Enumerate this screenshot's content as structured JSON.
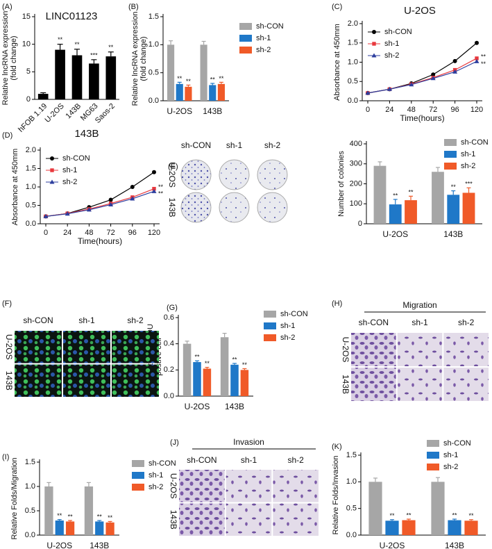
{
  "chart_data": [
    {
      "type": "bar",
      "panel": "(A)",
      "title": "LINC01123",
      "ylabel": [
        "Relative lncRNA expression",
        "(fold change)"
      ],
      "categories": [
        "hFOB 1.19",
        "U-2OS",
        "143B",
        "MG63",
        "Saos-2"
      ],
      "values": [
        1,
        9,
        8,
        6.5,
        7.8
      ],
      "errors": [
        0.2,
        1,
        1.1,
        0.7,
        0.8
      ],
      "annotations": [
        null,
        "**",
        "**",
        "***",
        "**"
      ],
      "color": "#000000",
      "ylim": [
        0,
        15
      ],
      "yticks": [
        0,
        5,
        10,
        15
      ]
    },
    {
      "type": "bar",
      "panel": "(B)",
      "ylabel": [
        "Relative lncRNA expression",
        "(fold change)"
      ],
      "categories": [
        "U-2OS",
        "143B"
      ],
      "series": [
        {
          "name": "sh-CON",
          "color": "#a6a6a6",
          "values": [
            1,
            1
          ],
          "errors": [
            0.07,
            0.06
          ],
          "annotations": [
            null,
            null
          ]
        },
        {
          "name": "sh-1",
          "color": "#1f78c8",
          "values": [
            0.3,
            0.28
          ],
          "errors": [
            0.03,
            0.03
          ],
          "annotations": [
            "**",
            "**"
          ]
        },
        {
          "name": "sh-2",
          "color": "#f05a28",
          "values": [
            0.25,
            0.3
          ],
          "errors": [
            0.03,
            0.03
          ],
          "annotations": [
            "**",
            "**"
          ]
        }
      ],
      "ylim": [
        0,
        1.5
      ],
      "yticks": [
        {
          "value": 0,
          "label": "0.0"
        },
        0.5,
        {
          "value": 1,
          "label": "1.0"
        },
        1.5
      ],
      "legend": "right"
    },
    {
      "type": "line",
      "panel": "(C)",
      "title": "U-2OS",
      "xlabel": "Time(hours)",
      "ylabel": [
        "Absorbance at 450mm"
      ],
      "x": [
        0,
        24,
        48,
        72,
        96,
        120
      ],
      "series": [
        {
          "name": "sh-CON",
          "color": "#000000",
          "marker": "circle",
          "values": [
            0.2,
            0.3,
            0.45,
            0.68,
            1.03,
            1.5
          ],
          "annotations": [
            null,
            null,
            null,
            null,
            null,
            null
          ]
        },
        {
          "name": "sh-1",
          "color": "#e8383d",
          "marker": "square",
          "values": [
            0.2,
            0.3,
            0.43,
            0.6,
            0.8,
            1.1
          ],
          "annotations": [
            null,
            null,
            null,
            null,
            null,
            "**"
          ]
        },
        {
          "name": "sh-2",
          "color": "#2c3e9e",
          "marker": "triangle",
          "values": [
            0.2,
            0.3,
            0.42,
            0.58,
            0.75,
            1.02
          ],
          "annotations": [
            null,
            null,
            null,
            null,
            null,
            "**"
          ]
        }
      ],
      "xlim": [
        0,
        120
      ],
      "xticks": [
        0,
        24,
        48,
        72,
        96,
        120
      ],
      "ylim": [
        0,
        2
      ],
      "yticks": [
        {
          "value": 0,
          "label": "0.0"
        },
        0.5,
        {
          "value": 1,
          "label": "1.0"
        },
        1.5,
        {
          "value": 2,
          "label": "2.0"
        }
      ],
      "legend": "upper left"
    },
    {
      "type": "line",
      "panel": "(D)",
      "title": "143B",
      "xlabel": "Time(hours)",
      "ylabel": [
        "Absorbance at 450mm"
      ],
      "x": [
        0,
        24,
        48,
        72,
        96,
        120
      ],
      "series": [
        {
          "name": "sh-CON",
          "color": "#000000",
          "marker": "circle",
          "values": [
            0.2,
            0.28,
            0.45,
            0.65,
            1,
            1.4
          ],
          "annotations": [
            null,
            null,
            null,
            null,
            null,
            null
          ]
        },
        {
          "name": "sh-1",
          "color": "#e8383d",
          "marker": "square",
          "values": [
            0.2,
            0.28,
            0.4,
            0.55,
            0.72,
            0.95
          ],
          "annotations": [
            null,
            null,
            null,
            null,
            null,
            "**"
          ]
        },
        {
          "name": "sh-2",
          "color": "#2c3e9e",
          "marker": "triangle",
          "values": [
            0.2,
            0.27,
            0.38,
            0.52,
            0.68,
            0.88
          ],
          "annotations": [
            null,
            null,
            null,
            null,
            null,
            "**"
          ]
        }
      ],
      "xlim": [
        0,
        120
      ],
      "xticks": [
        0,
        24,
        48,
        72,
        96,
        120
      ],
      "ylim": [
        0,
        2
      ],
      "yticks": [
        {
          "value": 0,
          "label": "0.0"
        },
        0.5,
        {
          "value": 1,
          "label": "1.0"
        },
        1.5,
        {
          "value": 2,
          "label": "2.0"
        }
      ],
      "legend": "upper left"
    },
    {
      "type": "bar",
      "ylabel": [
        "Number of colonies"
      ],
      "categories": [
        "U-2OS",
        "143B"
      ],
      "series": [
        {
          "name": "sh-CON",
          "color": "#a6a6a6",
          "values": [
            290,
            260
          ],
          "errors": [
            20,
            22
          ],
          "annotations": [
            null,
            null
          ]
        },
        {
          "name": "sh-1",
          "color": "#1f78c8",
          "values": [
            97,
            145
          ],
          "errors": [
            25,
            20
          ],
          "annotations": [
            "**",
            "**"
          ]
        },
        {
          "name": "sh-2",
          "color": "#f05a28",
          "values": [
            118,
            155
          ],
          "errors": [
            20,
            25
          ],
          "annotations": [
            "**",
            "***"
          ]
        }
      ],
      "ylim": [
        0,
        400
      ],
      "yticks": [
        0,
        100,
        200,
        300,
        400
      ],
      "legend": "upper right"
    },
    {
      "type": "bar",
      "panel": "(G)",
      "ylabel": [
        "Percentage of EDU",
        "postive cell"
      ],
      "categories": [
        "U-2OS",
        "143B"
      ],
      "series": [
        {
          "name": "sh-CON",
          "color": "#a6a6a6",
          "values": [
            0.4,
            0.45
          ],
          "errors": [
            0.02,
            0.03
          ],
          "annotations": [
            null,
            null
          ]
        },
        {
          "name": "sh-1",
          "color": "#1f78c8",
          "values": [
            0.26,
            0.24
          ],
          "errors": [
            0.01,
            0.01
          ],
          "annotations": [
            "**",
            "**"
          ]
        },
        {
          "name": "sh-2",
          "color": "#f05a28",
          "values": [
            0.21,
            0.2
          ],
          "errors": [
            0.01,
            0.01
          ],
          "annotations": [
            "**",
            "**"
          ]
        }
      ],
      "ylim": [
        0,
        0.6
      ],
      "yticks": [
        {
          "value": 0,
          "label": "0.0"
        },
        0.2,
        0.4,
        0.6
      ],
      "legend": "right"
    },
    {
      "type": "bar",
      "panel": "(I)",
      "ylabel": [
        "Relative Folds/Migration"
      ],
      "categories": [
        "U-2OS",
        "143B"
      ],
      "series": [
        {
          "name": "sh-CON",
          "color": "#a6a6a6",
          "values": [
            1,
            1
          ],
          "errors": [
            0.08,
            0.08
          ],
          "annotations": [
            null,
            null
          ]
        },
        {
          "name": "sh-1",
          "color": "#1f78c8",
          "values": [
            0.3,
            0.28
          ],
          "errors": [
            0.02,
            0.02
          ],
          "annotations": [
            "**",
            "**"
          ]
        },
        {
          "name": "sh-2",
          "color": "#f05a28",
          "values": [
            0.28,
            0.26
          ],
          "errors": [
            0.02,
            0.02
          ],
          "annotations": [
            "**",
            "**"
          ]
        }
      ],
      "ylim": [
        0,
        1.5
      ],
      "yticks": [
        {
          "value": 0,
          "label": "0.0"
        },
        0.5,
        {
          "value": 1,
          "label": "1.0"
        },
        1.5
      ],
      "legend": "right"
    },
    {
      "type": "bar",
      "panel": "(K)",
      "ylabel": [
        "Relative Folds/Invasion"
      ],
      "categories": [
        "U-2OS",
        "143B"
      ],
      "series": [
        {
          "name": "sh-CON",
          "color": "#a6a6a6",
          "values": [
            1,
            1
          ],
          "errors": [
            0.07,
            0.08
          ],
          "annotations": [
            null,
            null
          ]
        },
        {
          "name": "sh-1",
          "color": "#1f78c8",
          "values": [
            0.27,
            0.28
          ],
          "errors": [
            0.02,
            0.02
          ],
          "annotations": [
            "**",
            "**"
          ]
        },
        {
          "name": "sh-2",
          "color": "#f05a28",
          "values": [
            0.28,
            0.27
          ],
          "errors": [
            0.02,
            0.02
          ],
          "annotations": [
            "**",
            "**"
          ]
        }
      ],
      "ylim": [
        0,
        1.5
      ],
      "yticks": [
        {
          "value": 0,
          "label": "0.0"
        },
        0.5,
        {
          "value": 1,
          "label": "1.0"
        },
        1.5
      ],
      "legend": "upper right"
    }
  ],
  "image_panels": [
    {
      "panel": "(E)",
      "columns": [
        "sh-CON",
        "sh-1",
        "sh-2"
      ],
      "rows": [
        "U-2OS",
        "143B"
      ]
    },
    {
      "panel": "(F)",
      "columns": [
        "sh-CON",
        "sh-1",
        "sh-2"
      ],
      "rows": [
        "U-2OS",
        "143B"
      ]
    },
    {
      "panel": "(H)",
      "title": "Migration",
      "columns": [
        "sh-CON",
        "sh-1",
        "sh-2"
      ],
      "rows": [
        "U-2OS",
        "143B"
      ]
    },
    {
      "panel": "(J)",
      "title": "Invasion",
      "columns": [
        "sh-CON",
        "sh-1",
        "sh-2"
      ],
      "rows": [
        "U-2OS",
        "143B"
      ]
    }
  ]
}
